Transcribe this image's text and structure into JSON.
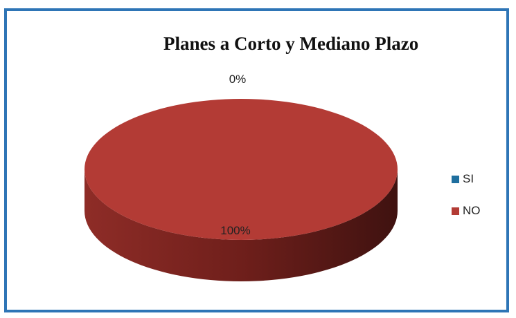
{
  "chart_data": {
    "type": "pie",
    "title": "Planes a Corto y Mediano Plazo",
    "categories": [
      "SI",
      "NO"
    ],
    "values": [
      0,
      100
    ],
    "data_labels": [
      "0%",
      "100%"
    ],
    "colors": [
      "#1f6f9f",
      "#b33b35"
    ],
    "legend_position": "right",
    "style": "3d"
  }
}
